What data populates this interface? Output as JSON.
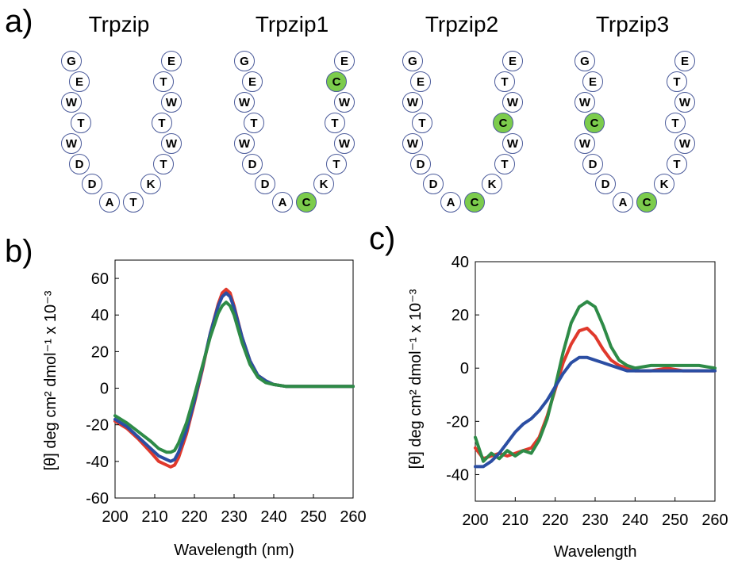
{
  "panels": {
    "a": "a)",
    "b": "b)",
    "c": "c)"
  },
  "colors": {
    "cysteine": "#7ccc4c",
    "residue": "#ffffff",
    "residue_stroke": "#4a5a9a",
    "red": "#e0392c",
    "green": "#2e8b47",
    "blue": "#2b4ea3"
  },
  "peptides": [
    {
      "name": "Trpzip",
      "residues": [
        "G",
        "E",
        "W",
        "T",
        "W",
        "D",
        "D",
        "A",
        "T",
        "K",
        "T",
        "W",
        "T",
        "W",
        "T",
        "E"
      ],
      "cys_index": -1
    },
    {
      "name": "Trpzip1",
      "residues": [
        "G",
        "E",
        "W",
        "T",
        "W",
        "D",
        "D",
        "A",
        "C",
        "K",
        "T",
        "W",
        "T",
        "W",
        "C",
        "E"
      ],
      "cys_index": [
        8,
        14
      ]
    },
    {
      "name": "Trpzip2",
      "residues": [
        "G",
        "E",
        "W",
        "T",
        "W",
        "D",
        "D",
        "A",
        "C",
        "K",
        "T",
        "W",
        "C",
        "W",
        "T",
        "E"
      ],
      "cys_index": [
        8,
        12
      ]
    },
    {
      "name": "Trpzip3",
      "residues": [
        "G",
        "E",
        "W",
        "C",
        "W",
        "D",
        "D",
        "A",
        "C",
        "K",
        "T",
        "W",
        "T",
        "W",
        "T",
        "E"
      ],
      "cys_index": [
        3,
        8
      ]
    }
  ],
  "chart_data": [
    {
      "type": "line",
      "panel": "b",
      "xlabel": "Wavelength (nm)",
      "ylabel": "[θ] deg cm² dmol⁻¹ x 10⁻³",
      "xlim": [
        200,
        260
      ],
      "ylim": [
        -60,
        70
      ],
      "xticks": [
        200,
        210,
        220,
        230,
        240,
        250,
        260
      ],
      "yticks": [
        -60,
        -40,
        -20,
        0,
        20,
        40,
        60
      ],
      "series": [
        {
          "color": "#e0392c",
          "x": [
            200,
            203,
            206,
            209,
            211,
            213,
            214,
            215,
            216,
            218,
            220,
            222,
            224,
            226,
            227,
            228,
            229,
            230,
            232,
            234,
            236,
            238,
            240,
            243,
            246,
            250,
            255,
            260
          ],
          "y": [
            -18,
            -22,
            -28,
            -35,
            -40,
            -42,
            -43,
            -42,
            -38,
            -25,
            -8,
            10,
            30,
            46,
            52,
            54,
            52,
            45,
            28,
            15,
            7,
            4,
            2,
            1,
            1,
            1,
            1,
            1
          ]
        },
        {
          "color": "#2b4ea3",
          "x": [
            200,
            203,
            206,
            209,
            211,
            213,
            214,
            215,
            216,
            218,
            220,
            222,
            224,
            226,
            227,
            228,
            229,
            230,
            232,
            234,
            236,
            238,
            240,
            243,
            246,
            250,
            255,
            260
          ],
          "y": [
            -17,
            -21,
            -27,
            -33,
            -37,
            -39,
            -40,
            -39,
            -35,
            -23,
            -7,
            11,
            30,
            45,
            50,
            52,
            50,
            44,
            28,
            15,
            7,
            4,
            2,
            1,
            1,
            1,
            1,
            1
          ]
        },
        {
          "color": "#2e8b47",
          "x": [
            200,
            203,
            206,
            209,
            211,
            213,
            214,
            215,
            216,
            218,
            220,
            222,
            224,
            226,
            227,
            228,
            229,
            230,
            232,
            234,
            236,
            238,
            240,
            243,
            246,
            250,
            255,
            260
          ],
          "y": [
            -15,
            -19,
            -24,
            -29,
            -33,
            -35,
            -35,
            -34,
            -30,
            -19,
            -4,
            12,
            28,
            41,
            45,
            47,
            45,
            40,
            25,
            13,
            6,
            3,
            2,
            1,
            1,
            1,
            1,
            1
          ]
        }
      ]
    },
    {
      "type": "line",
      "panel": "c",
      "xlabel": "Wavelength",
      "ylabel": "[θ] deg cm² dmol⁻¹ x 10⁻³",
      "xlim": [
        200,
        260
      ],
      "ylim": [
        -50,
        40
      ],
      "xticks": [
        200,
        210,
        220,
        230,
        240,
        250,
        260
      ],
      "yticks": [
        -40,
        -20,
        0,
        20,
        40
      ],
      "series": [
        {
          "color": "#e0392c",
          "x": [
            200,
            202,
            204,
            206,
            208,
            210,
            212,
            214,
            216,
            218,
            220,
            222,
            224,
            226,
            228,
            230,
            232,
            234,
            236,
            238,
            240,
            244,
            248,
            252,
            256,
            260
          ],
          "y": [
            -30,
            -34,
            -33,
            -32,
            -33,
            -32,
            -31,
            -30,
            -26,
            -18,
            -8,
            2,
            9,
            14,
            15,
            12,
            7,
            3,
            1,
            0,
            -1,
            -1,
            0,
            -1,
            -1,
            -1
          ]
        },
        {
          "color": "#2e8b47",
          "x": [
            200,
            202,
            204,
            206,
            208,
            210,
            212,
            214,
            216,
            218,
            220,
            222,
            224,
            226,
            228,
            230,
            232,
            234,
            236,
            238,
            240,
            244,
            248,
            252,
            256,
            260
          ],
          "y": [
            -26,
            -35,
            -32,
            -34,
            -31,
            -33,
            -31,
            -32,
            -27,
            -19,
            -7,
            6,
            17,
            23,
            25,
            23,
            16,
            8,
            3,
            1,
            0,
            1,
            1,
            1,
            1,
            0
          ]
        },
        {
          "color": "#2b4ea3",
          "x": [
            200,
            202,
            204,
            206,
            208,
            210,
            212,
            214,
            216,
            218,
            220,
            222,
            224,
            226,
            228,
            230,
            232,
            234,
            236,
            238,
            240,
            244,
            248,
            252,
            256,
            260
          ],
          "y": [
            -37,
            -37,
            -35,
            -32,
            -28,
            -24,
            -21,
            -19,
            -16,
            -12,
            -7,
            -2,
            2,
            4,
            4,
            3,
            2,
            1,
            0,
            -1,
            -1,
            -1,
            -1,
            -1,
            -1,
            -1
          ]
        }
      ]
    }
  ]
}
